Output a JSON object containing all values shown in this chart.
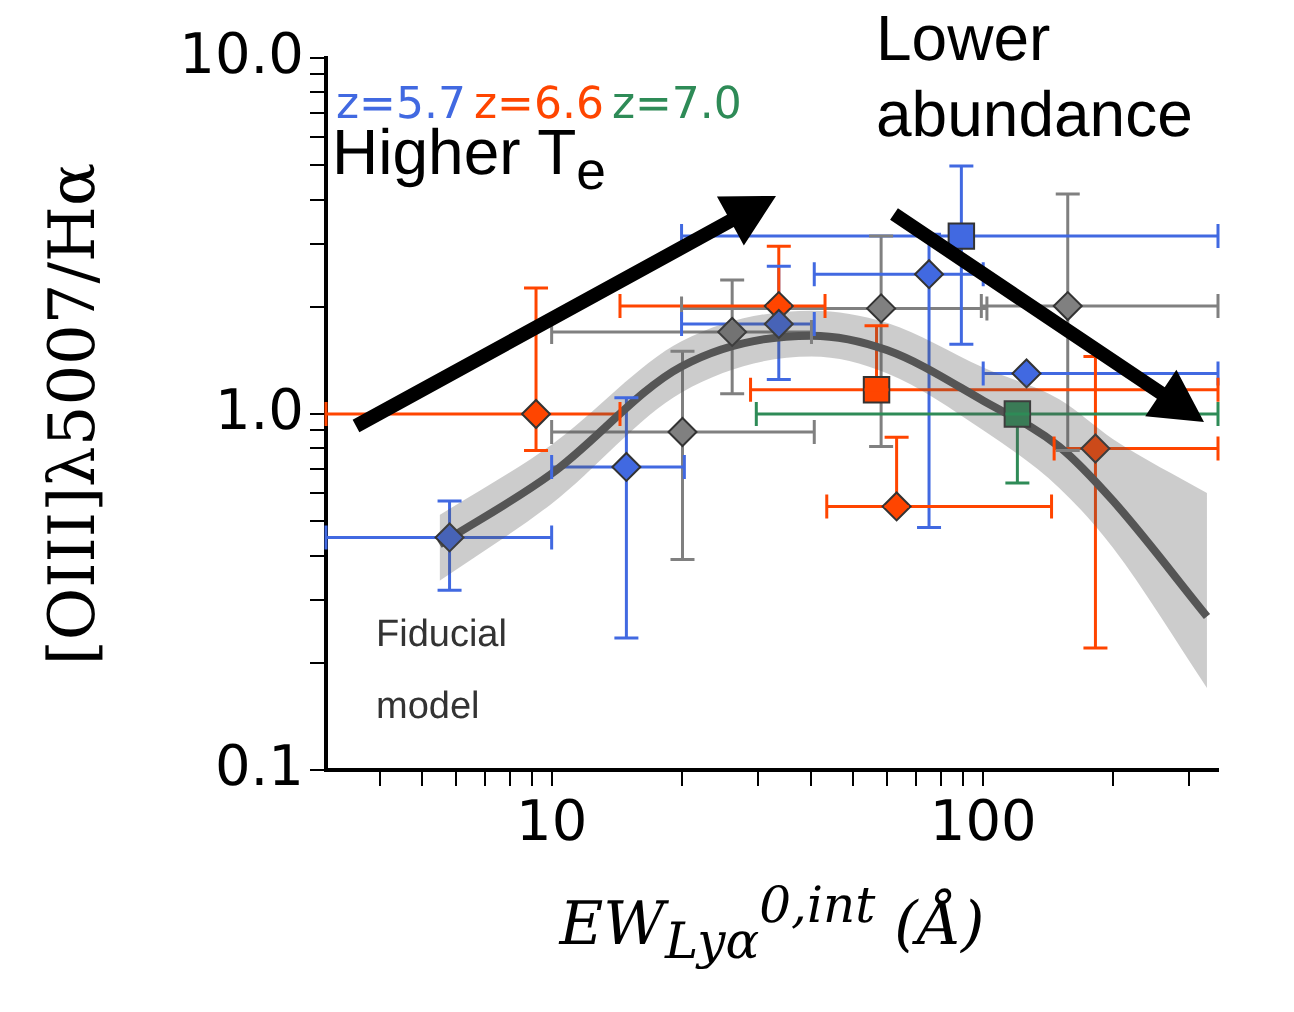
{
  "chart_data": {
    "type": "scatter",
    "xlabel": "EW$_{Lyα}$$^{0,int}$ (Å)",
    "ylabel": "[OIII]λ5007/Hα",
    "log": "xy",
    "grid": false,
    "legend": "top left",
    "xlim": [
      3,
      350
    ],
    "ylim": [
      0.1,
      10
    ],
    "xticks": [
      {
        "value": 4,
        "label": null
      },
      {
        "value": 5,
        "label": null
      },
      {
        "value": 6,
        "label": null
      },
      {
        "value": 7,
        "label": null
      },
      {
        "value": 8,
        "label": null
      },
      {
        "value": 9,
        "label": null
      },
      10,
      {
        "value": 20,
        "label": null
      },
      {
        "value": 30,
        "label": null
      },
      {
        "value": 40,
        "label": null
      },
      {
        "value": 50,
        "label": null
      },
      {
        "value": 60,
        "label": null
      },
      {
        "value": 70,
        "label": null
      },
      {
        "value": 80,
        "label": null
      },
      {
        "value": 90,
        "label": null
      },
      100,
      {
        "value": 200,
        "label": null
      },
      {
        "value": 300,
        "label": null
      }
    ],
    "yticks": [
      {
        "value": 0.1,
        "label": "0.1"
      },
      {
        "value": 0.2,
        "label": null
      },
      {
        "value": 0.3,
        "label": null
      },
      {
        "value": 0.4,
        "label": null
      },
      {
        "value": 0.5,
        "label": null
      },
      {
        "value": 0.6,
        "label": null
      },
      {
        "value": 0.7,
        "label": null
      },
      {
        "value": 0.8,
        "label": null
      },
      {
        "value": 0.9,
        "label": null
      },
      {
        "value": 1,
        "label": "1.0"
      },
      {
        "value": 2,
        "label": null
      },
      {
        "value": 3,
        "label": null
      },
      {
        "value": 4,
        "label": null
      },
      {
        "value": 5,
        "label": null
      },
      {
        "value": 6,
        "label": null
      },
      {
        "value": 7,
        "label": null
      },
      {
        "value": 8,
        "label": null
      },
      {
        "value": 9,
        "label": null
      },
      {
        "value": 10,
        "label": "10.0"
      }
    ],
    "annotations": [
      "Higher T$_{e}$",
      "Lower abundance",
      "Fiducial model"
    ],
    "series": [
      {
        "type": "line",
        "color": "#555555",
        "marker": "none",
        "x": [
          5.5,
          10,
          20,
          40,
          60,
          100,
          150,
          200,
          330
        ],
        "values": [
          0.43,
          0.68,
          1.36,
          1.66,
          1.51,
          1.09,
          0.81,
          0.57,
          0.27
        ],
        "lower": [
          0.34,
          0.56,
          1.15,
          1.45,
          1.3,
          0.9,
          0.62,
          0.42,
          0.17
        ],
        "upper": [
          0.52,
          0.82,
          1.6,
          1.95,
          1.8,
          1.35,
          1.1,
          0.85,
          0.6
        ]
      },
      {
        "color": "#808080",
        "marker": "diamond",
        "x": [
          20.1,
          26.2,
          58,
          157
        ],
        "values": [
          0.89,
          1.7,
          1.98,
          2.01
        ],
        "errors": [
          [
            0.39,
            1.5
          ],
          [
            1.14,
            2.38
          ],
          [
            0.81,
            3.16
          ],
          [
            0.79,
            4.15
          ]
        ],
        "xerrors": [
          [
            10,
            40.6
          ],
          [
            10,
            40
          ],
          [
            20,
            102
          ],
          [
            99,
            350
          ]
        ]
      },
      {
        "name": "z=5.7",
        "color": "#4169e1",
        "marker": "diamond",
        "x": [
          5.8,
          14.9,
          33.6,
          74.9,
          126
        ],
        "values": [
          0.45,
          0.71,
          1.79,
          2.47,
          1.3
        ],
        "errors": [
          [
            0.32,
            0.57
          ],
          [
            0.235,
            1.11
          ],
          [
            1.25,
            2.6
          ],
          [
            0.48,
            3.2
          ],
          null
        ],
        "xerrors": [
          [
            3,
            10
          ],
          [
            10,
            20.3
          ],
          [
            20,
            40.6
          ],
          [
            40.6,
            100
          ],
          [
            100,
            350
          ]
        ]
      },
      {
        "color": "#4169e1",
        "marker": "square",
        "x": [
          89
        ],
        "values": [
          3.16
        ],
        "errors": [
          [
            1.57,
            4.97
          ]
        ],
        "xerrors": [
          [
            20,
            350
          ]
        ]
      },
      {
        "name": "z=6.6",
        "color": "#ff4500",
        "marker": "diamond",
        "x": [
          9.2,
          33.6,
          63,
          182
        ],
        "values": [
          1.0,
          2.01,
          0.55,
          0.8
        ],
        "errors": [
          [
            0.79,
            2.26
          ],
          [
            2.01,
            2.96
          ],
          [
            0.55,
            0.86
          ],
          [
            0.22,
            1.45
          ]
        ],
        "xerrors": [
          [
            3,
            14.4
          ],
          [
            14.4,
            43
          ],
          [
            43.4,
            144
          ],
          [
            146,
            350
          ]
        ]
      },
      {
        "color": "#ff4500",
        "marker": "square",
        "x": [
          56.6
        ],
        "values": [
          1.17
        ],
        "errors": [
          [
            1.17,
            1.77
          ]
        ],
        "xerrors": [
          [
            28.9,
            350
          ]
        ]
      },
      {
        "name": "z=7.0",
        "color": "#2e8b57",
        "marker": "square",
        "x": [
          120
        ],
        "values": [
          1.0
        ],
        "errors": [
          [
            0.64,
            1.0
          ]
        ],
        "xerrors": [
          [
            29.8,
            350
          ]
        ]
      }
    ]
  }
}
